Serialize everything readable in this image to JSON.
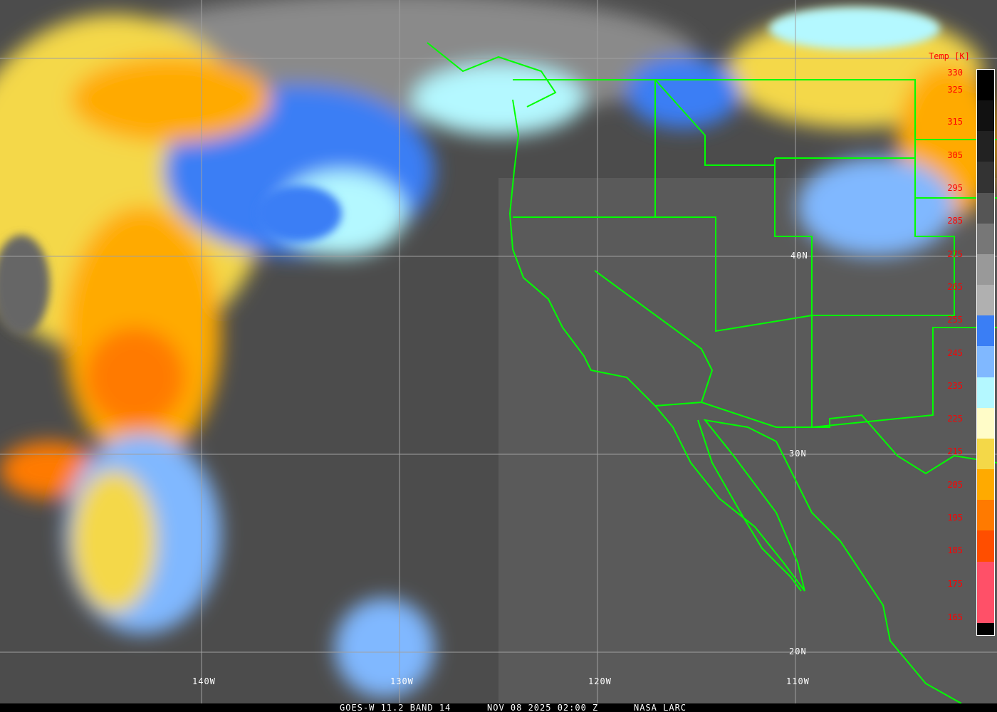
{
  "footer": {
    "satellite": "GOES-W 11.2 BAND 14",
    "datetime": "NOV 08 2025 02:00 Z",
    "credit": "NASA LARC"
  },
  "longitude_labels": [
    "140W",
    "130W",
    "120W",
    "110W"
  ],
  "latitude_labels": [
    "40N",
    "30N",
    "20N"
  ],
  "colorbar": {
    "title": "Temp [K]",
    "ticks": [
      "330",
      "325",
      "315",
      "305",
      "295",
      "285",
      "275",
      "265",
      "255",
      "245",
      "235",
      "225",
      "215",
      "205",
      "195",
      "185",
      "175",
      "165"
    ],
    "colors": [
      "#000000",
      "#111111",
      "#222222",
      "#333333",
      "#555555",
      "#777777",
      "#999999",
      "#b0b0b0",
      "#3a7ef5",
      "#80b8ff",
      "#b4f8ff",
      "#fffcc8",
      "#f4d848",
      "#ffaa00",
      "#ff7a00",
      "#ff4e00",
      "#ff5068",
      "#ff5068",
      "#000000"
    ]
  },
  "colors": {
    "coastline": "#00ff00",
    "grid": "#a0a0a0",
    "ocean": "#4a4a4a"
  }
}
